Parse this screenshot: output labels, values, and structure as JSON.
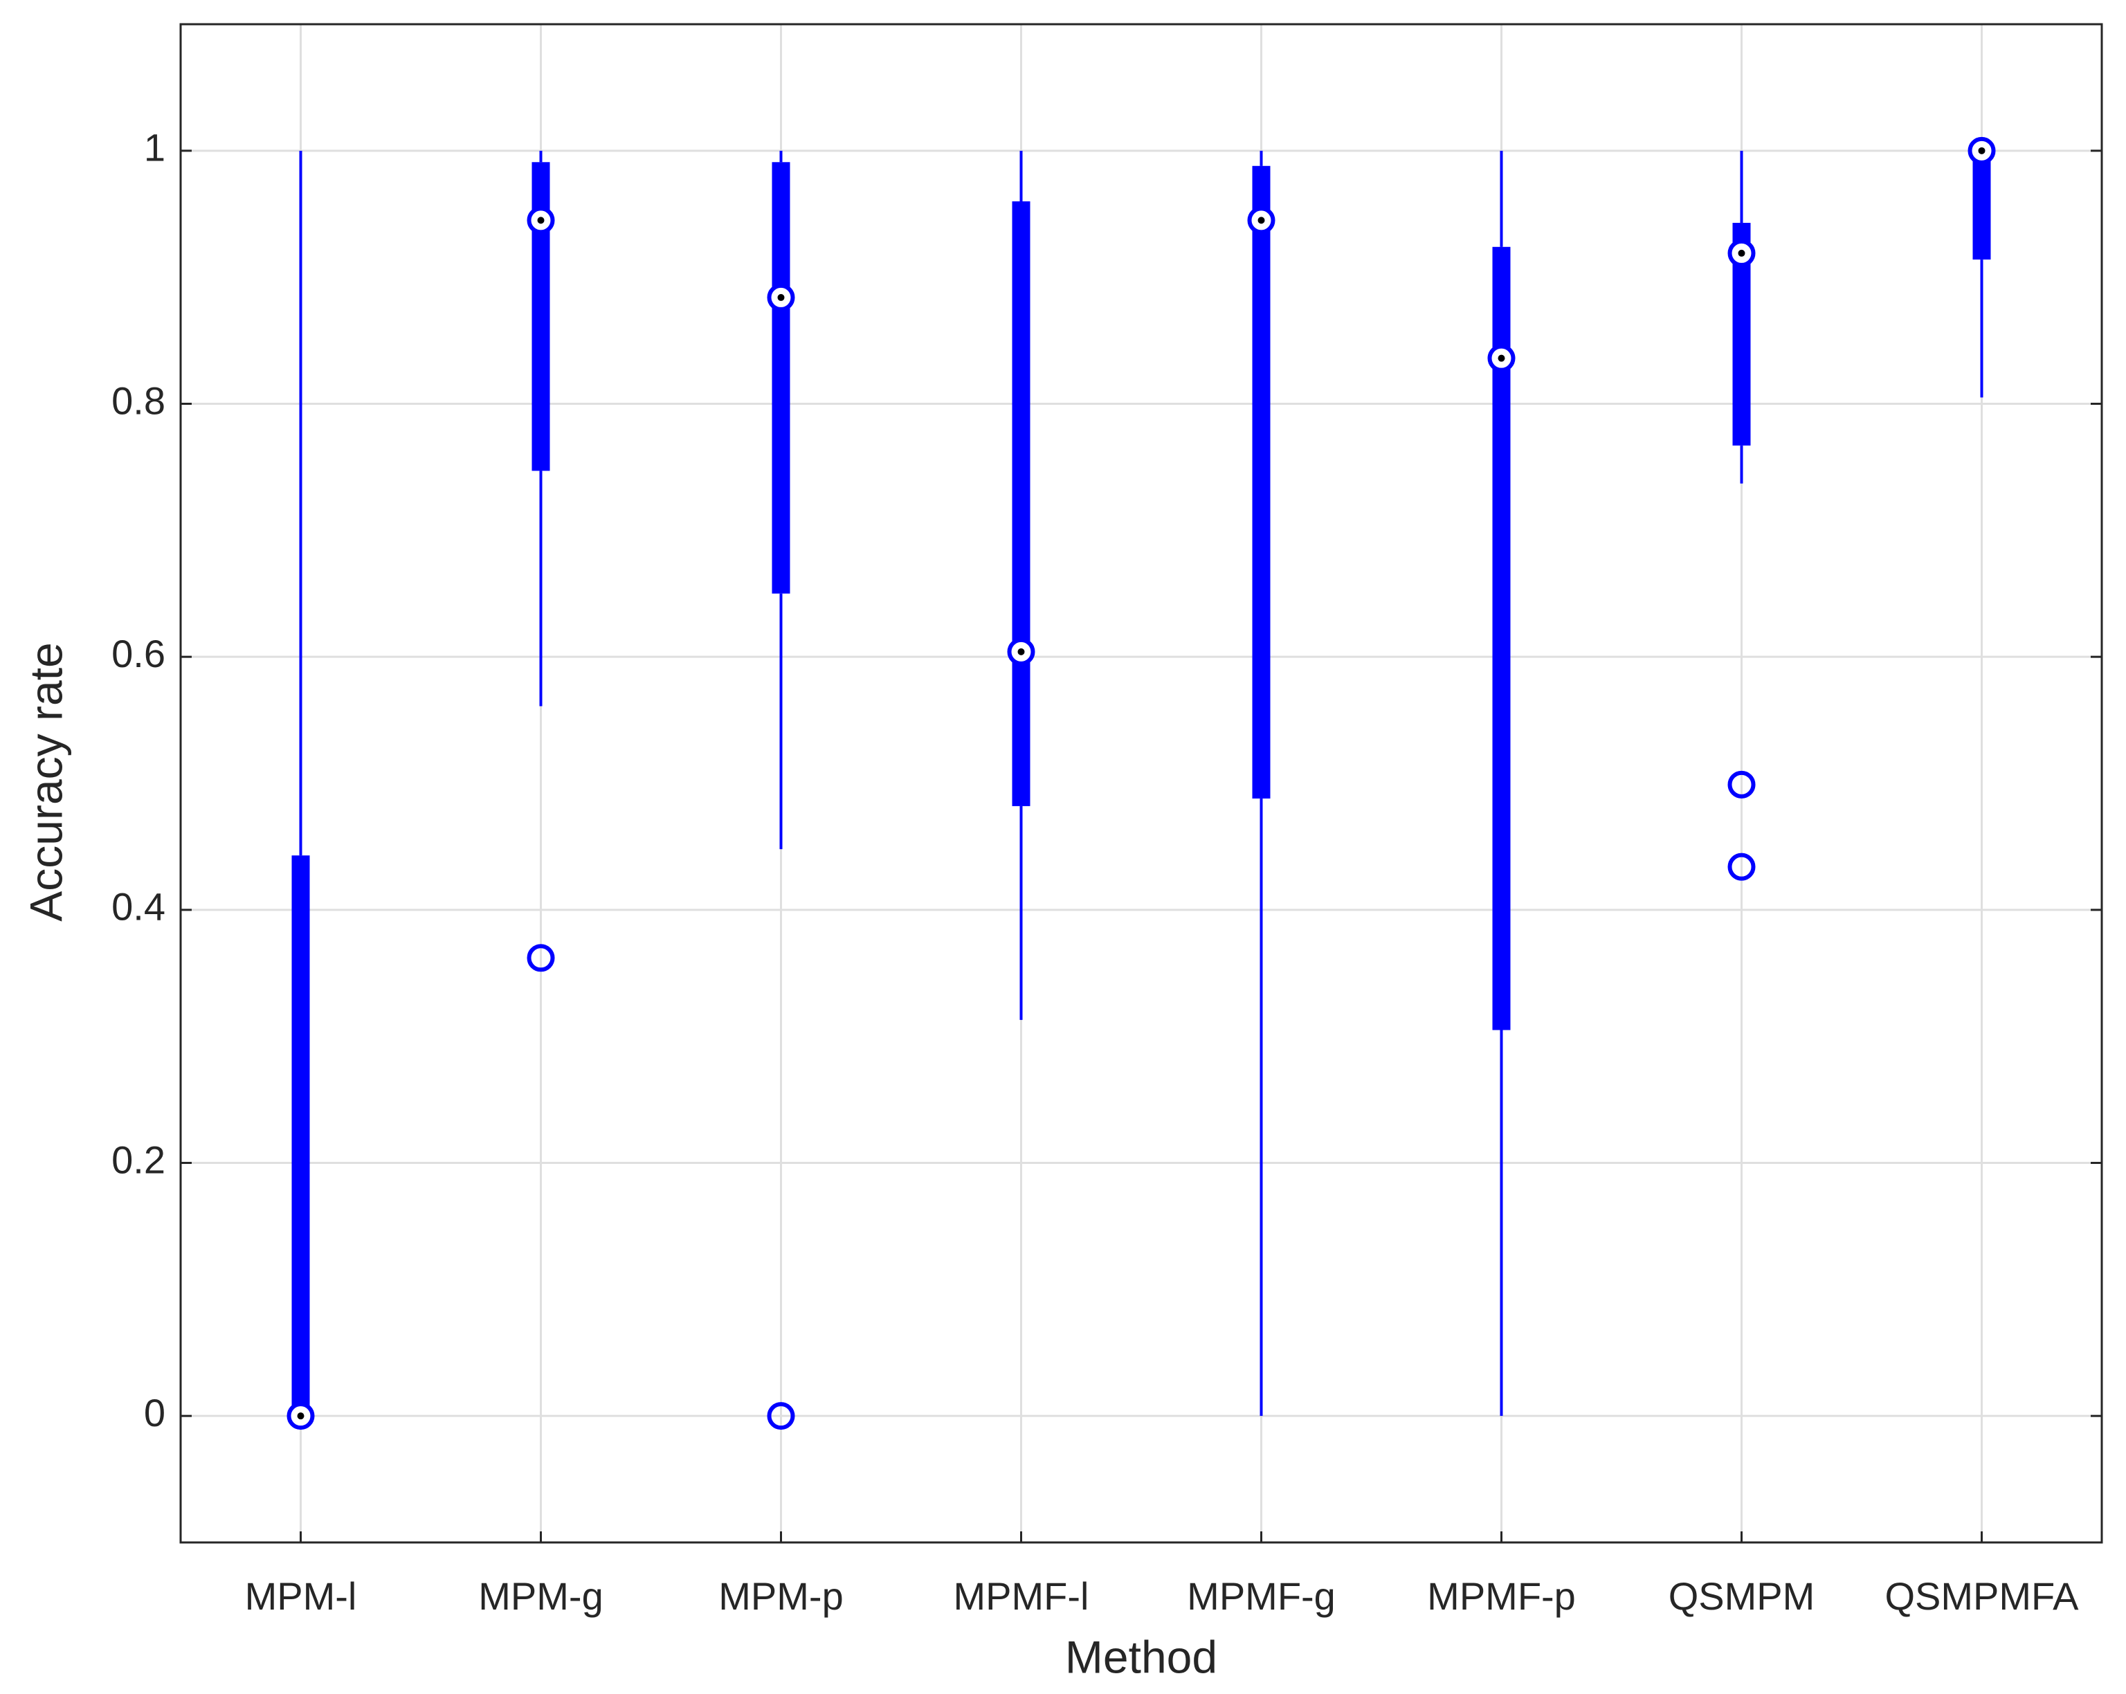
{
  "chart_data": {
    "type": "box",
    "x_label": "Method",
    "y_label": "Accuracy rate",
    "categories": [
      "MPM-l",
      "MPM-g",
      "MPM-p",
      "MPMF-l",
      "MPMF-g",
      "MPMF-p",
      "QSMPM",
      "QSMPMFA"
    ],
    "boxes": [
      {
        "min": 0,
        "q1": 0,
        "median": 0,
        "q3": 0.443,
        "max": 1,
        "outliers": []
      },
      {
        "min": 0.561,
        "q1": 0.747,
        "median": 0.945,
        "q3": 0.991,
        "max": 1,
        "outliers": [
          0.362
        ]
      },
      {
        "min": 0.448,
        "q1": 0.65,
        "median": 0.884,
        "q3": 0.991,
        "max": 1,
        "outliers": [
          0
        ]
      },
      {
        "min": 0.313,
        "q1": 0.482,
        "median": 0.604,
        "q3": 0.96,
        "max": 1,
        "outliers": []
      },
      {
        "min": 0,
        "q1": 0.488,
        "median": 0.945,
        "q3": 0.988,
        "max": 1,
        "outliers": []
      },
      {
        "min": 0,
        "q1": 0.305,
        "median": 0.836,
        "q3": 0.924,
        "max": 1,
        "outliers": []
      },
      {
        "min": 0.737,
        "q1": 0.767,
        "median": 0.919,
        "q3": 0.943,
        "max": 1,
        "outliers": [
          0.499,
          0.434
        ]
      },
      {
        "min": 0.805,
        "q1": 0.914,
        "median": 1,
        "q3": 1,
        "max": 1,
        "outliers": []
      }
    ],
    "color": "#0000ff",
    "ylim": [
      -0.1,
      1.1
    ],
    "yticks": [
      0,
      0.2,
      0.4,
      0.6,
      0.8,
      1
    ],
    "grid": true
  }
}
